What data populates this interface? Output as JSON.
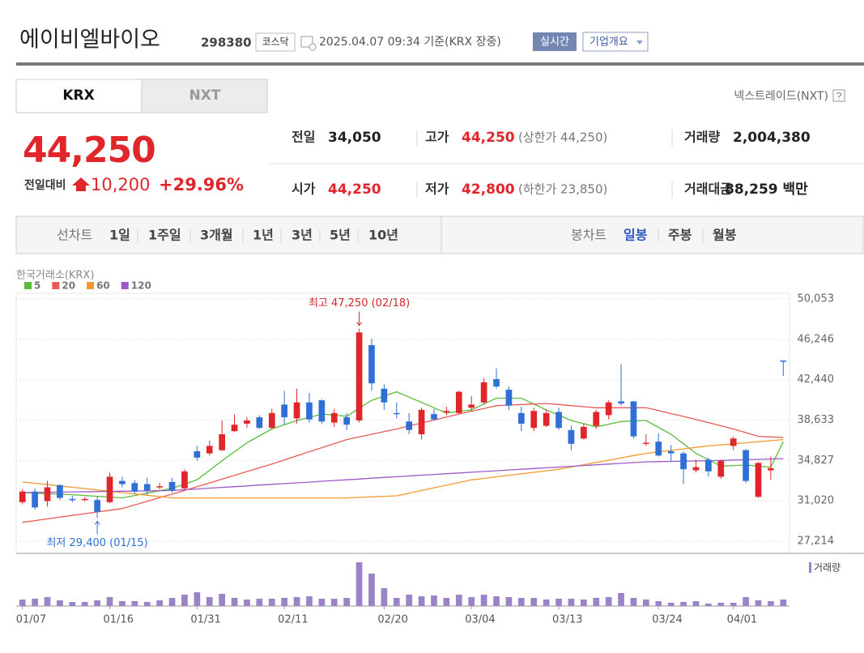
{
  "header": {
    "name": "에이비엘바이오",
    "code": "298380",
    "market": "코스닥",
    "timestamp": "2025.04.07 09:34 기준(KRX 장중)",
    "realtime": "실시간",
    "company_info": "기업개요"
  },
  "tabs": [
    "KRX",
    "NXT"
  ],
  "exchange_link": "넥스트레이드(NXT)",
  "quote": {
    "price": "44,250",
    "change_label": "전일대비",
    "change": "10,200",
    "change_rate": "+29.96%",
    "items": [
      {
        "label": "전일",
        "value": "34,050"
      },
      {
        "label": "고가",
        "value": "44,250",
        "note": "(상한가 44,250)"
      },
      {
        "label": "거래량",
        "value": "2,004,380"
      },
      {
        "label": "시가",
        "value": "44,250"
      },
      {
        "label": "저가",
        "value": "42,800",
        "note": "(하한가 23,850)"
      },
      {
        "label": "거래대금",
        "value": "88,259 백만"
      }
    ]
  },
  "period_bar": {
    "line_chart": "선차트",
    "line_periods": [
      "1일",
      "1주일",
      "3개월",
      "1년",
      "3년",
      "5년",
      "10년"
    ],
    "candle_chart": "봉차트",
    "candle_periods": [
      "일봉",
      "주봉",
      "월봉"
    ]
  },
  "chart_data": {
    "type": "candlestick",
    "source": "한국거래소(KRX)",
    "categories": [
      "01/07",
      null,
      null,
      null,
      null,
      null,
      null,
      "01/16",
      null,
      null,
      null,
      null,
      null,
      null,
      "01/31",
      null,
      null,
      null,
      null,
      null,
      null,
      "02/11",
      null,
      null,
      null,
      null,
      null,
      null,
      null,
      "02/20",
      null,
      null,
      null,
      null,
      null,
      null,
      "03/04",
      null,
      null,
      null,
      null,
      null,
      null,
      "03/13",
      null,
      null,
      null,
      null,
      null,
      null,
      null,
      "03/24",
      null,
      null,
      null,
      null,
      null,
      "04/01",
      null,
      null,
      null,
      null
    ],
    "open": [
      30900,
      31900,
      31000,
      32500,
      31200,
      31100,
      31100,
      30900,
      32900,
      32700,
      32600,
      32300,
      32800,
      32200,
      35700,
      35500,
      35800,
      37600,
      38300,
      38900,
      37900,
      40100,
      38800,
      40300,
      40500,
      38400,
      38900,
      38600,
      45700,
      41600,
      39300,
      38500,
      37300,
      39200,
      39400,
      39300,
      39800,
      40300,
      42500,
      41500,
      39300,
      37900,
      38100,
      39400,
      37700,
      36900,
      38100,
      39100,
      40400,
      40400,
      36400,
      36600,
      35700,
      35500,
      33900,
      34900,
      33300,
      36200,
      35800,
      31400,
      33900,
      44250
    ],
    "high": [
      32100,
      32200,
      32900,
      32600,
      31500,
      31400,
      31400,
      33700,
      33300,
      33000,
      33200,
      32700,
      33200,
      34000,
      36200,
      36700,
      38600,
      39200,
      38900,
      39100,
      39700,
      41400,
      41600,
      41200,
      40600,
      39700,
      39300,
      47250,
      46300,
      42000,
      40300,
      39300,
      39800,
      39700,
      39900,
      41400,
      40900,
      42600,
      43500,
      41800,
      39900,
      39800,
      39600,
      39800,
      38100,
      38300,
      39600,
      40500,
      43900,
      40400,
      37300,
      37400,
      36300,
      35700,
      34900,
      35100,
      34900,
      37100,
      35900,
      34700,
      35200,
      44250
    ],
    "low": [
      30700,
      30200,
      30500,
      31100,
      30900,
      31000,
      29400,
      30800,
      32300,
      31700,
      31600,
      32100,
      31800,
      32000,
      34800,
      35300,
      35700,
      37500,
      37900,
      37800,
      37800,
      38200,
      38300,
      38400,
      38300,
      38000,
      37700,
      38400,
      41400,
      39600,
      38800,
      37300,
      36800,
      38600,
      39100,
      39200,
      39500,
      40100,
      41600,
      39600,
      37600,
      37600,
      38000,
      37700,
      35800,
      36800,
      37800,
      38700,
      40000,
      36900,
      36200,
      35200,
      34800,
      32600,
      33700,
      33300,
      33100,
      35800,
      32700,
      31300,
      33000,
      42800
    ],
    "close": [
      31900,
      30400,
      32300,
      31300,
      31100,
      31200,
      30000,
      33300,
      32600,
      31900,
      32000,
      32400,
      32000,
      33800,
      35100,
      36200,
      37300,
      38200,
      38600,
      37900,
      39300,
      38900,
      40300,
      38700,
      38500,
      39300,
      38200,
      46900,
      42100,
      40300,
      39200,
      37700,
      39600,
      38700,
      39500,
      41300,
      40100,
      42200,
      41800,
      40000,
      38300,
      39500,
      39300,
      37900,
      36400,
      38000,
      39400,
      40300,
      40200,
      37100,
      36500,
      35300,
      35500,
      34000,
      34200,
      33800,
      34800,
      36900,
      32900,
      34600,
      34100,
      44250
    ],
    "up_color": "#e0262b",
    "down_color": "#2f6fd6",
    "series": [
      {
        "name": "5",
        "color": "#5cbb3a",
        "values": [
          31800,
          31750,
          31700,
          31650,
          31600,
          31530,
          31450,
          31380,
          31300,
          31530,
          31750,
          31980,
          32200,
          32600,
          33000,
          33900,
          34800,
          35650,
          36500,
          37150,
          37800,
          38200,
          38600,
          38900,
          39200,
          39100,
          39000,
          39750,
          40500,
          40900,
          41300,
          40800,
          40300,
          39800,
          39300,
          39450,
          39600,
          40150,
          40700,
          40700,
          40700,
          40150,
          39600,
          39100,
          38600,
          38300,
          38000,
          38250,
          38500,
          38550,
          38600,
          37950,
          37300,
          36400,
          35500,
          34900,
          34300,
          34350,
          34400,
          34300,
          34200,
          36600
        ]
      },
      {
        "name": "20",
        "color": "#e85a5a",
        "values": [
          29000,
          29160,
          29330,
          29490,
          29650,
          29810,
          29980,
          30140,
          30300,
          30640,
          30980,
          31320,
          31660,
          32000,
          32360,
          32710,
          33070,
          33430,
          33790,
          34140,
          34500,
          34880,
          35270,
          35650,
          36030,
          36420,
          36800,
          37050,
          37300,
          37550,
          37800,
          38080,
          38360,
          38640,
          38920,
          39200,
          39470,
          39730,
          40000,
          40050,
          40100,
          40150,
          40200,
          40100,
          40000,
          39900,
          39800,
          39800,
          39800,
          39800,
          39800,
          39530,
          39250,
          38980,
          38700,
          38400,
          38100,
          37800,
          37450,
          37100,
          37050,
          37000
        ]
      },
      {
        "name": "60",
        "color": "#f39a2e",
        "values": [
          32800,
          32680,
          32550,
          32430,
          32300,
          32180,
          32050,
          31930,
          31800,
          31680,
          31550,
          31430,
          31300,
          31300,
          31300,
          31300,
          31300,
          31300,
          31300,
          31300,
          31300,
          31300,
          31300,
          31300,
          31300,
          31300,
          31300,
          31350,
          31400,
          31450,
          31500,
          31750,
          32000,
          32250,
          32500,
          32750,
          33000,
          33140,
          33290,
          33430,
          33570,
          33710,
          33860,
          34000,
          34210,
          34430,
          34640,
          34860,
          35070,
          35290,
          35500,
          35640,
          35780,
          35920,
          36060,
          36200,
          36300,
          36400,
          36500,
          36600,
          36700,
          36800
        ]
      },
      {
        "name": "120",
        "color": "#9b59c9",
        "values": [
          31800,
          31820,
          31830,
          31850,
          31870,
          31880,
          31900,
          31920,
          31930,
          31950,
          31970,
          31980,
          32000,
          32070,
          32140,
          32220,
          32290,
          32360,
          32430,
          32510,
          32580,
          32650,
          32720,
          32790,
          32870,
          32940,
          33010,
          33080,
          33160,
          33230,
          33300,
          33370,
          33440,
          33510,
          33580,
          33650,
          33720,
          33790,
          33860,
          33930,
          34000,
          34070,
          34140,
          34210,
          34280,
          34350,
          34420,
          34490,
          34560,
          34630,
          34700,
          34720,
          34740,
          34760,
          34780,
          34800,
          34830,
          34870,
          34900,
          34930,
          34970,
          35000
        ]
      }
    ],
    "ylim": [
      26150,
      50590
    ],
    "yticks": [
      {
        "value": 50053,
        "label": "50,053"
      },
      {
        "value": 46246,
        "label": "46,246"
      },
      {
        "value": 42440,
        "label": "42,440"
      },
      {
        "value": 38633,
        "label": "38,633"
      },
      {
        "value": 34827,
        "label": "34,827"
      },
      {
        "value": 31020,
        "label": "31,020"
      },
      {
        "value": 27214,
        "label": "27,214"
      }
    ],
    "grid": true,
    "annotations": [
      {
        "text": "최고 47,250 (02/18)",
        "value": 47250
      },
      {
        "text": "최저 29,400 (01/15)",
        "value": 29400
      }
    ],
    "volume": {
      "name": "거래량",
      "color": "#9b83c7",
      "ylim": [
        0,
        15000000
      ],
      "values": [
        2000000,
        2250000,
        2750000,
        1750000,
        1250000,
        1250000,
        1750000,
        2750000,
        1500000,
        1500000,
        1250000,
        1750000,
        2500000,
        3500000,
        4250000,
        2750000,
        3750000,
        2500000,
        2000000,
        2250000,
        2250000,
        2500000,
        2750000,
        3000000,
        2250000,
        2250000,
        2500000,
        13500000,
        10000000,
        5500000,
        2500000,
        3500000,
        3000000,
        3250000,
        2500000,
        3500000,
        2750000,
        3500000,
        3000000,
        2750000,
        2500000,
        2500000,
        2000000,
        2250000,
        2250000,
        2000000,
        2500000,
        2750000,
        4000000,
        2500000,
        2000000,
        1500000,
        1000000,
        1250000,
        1500000,
        750000,
        1000000,
        1000000,
        2750000,
        1750000,
        1500000,
        2004380
      ]
    }
  }
}
